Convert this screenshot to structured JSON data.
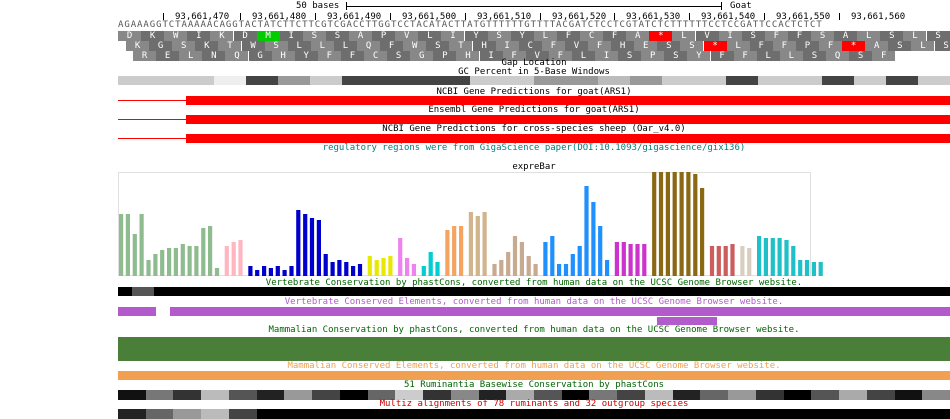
{
  "ruler": {
    "scale_label": "50 bases",
    "assembly_label": "Goat",
    "positions": [
      "93,661,470",
      "93,661,480",
      "93,661,490",
      "93,661,500",
      "93,661,510",
      "93,661,520",
      "93,661,530",
      "93,661,540",
      "93,661,550",
      "93,661,560"
    ]
  },
  "sequence": "AGAAAGGTCTAAAAACAGGTACTATCTTCTTCGTCGACCTTGGTCCTACATACTTATGTTTTTTGTTTTACGATCTCCTCGTATCTCTTTTTTCCTCCGATTCCACTCTCT",
  "frames": {
    "frame1": [
      "D",
      "K",
      "W",
      "I",
      "K",
      "D",
      "M",
      "I",
      "S",
      "S",
      "A",
      "P",
      "V",
      "L",
      "I",
      "Y",
      "S",
      "Y",
      "L",
      "F",
      "C",
      "F",
      "A",
      "*",
      "L",
      "V",
      "I",
      "S",
      "F",
      "F",
      "S",
      "A",
      "L",
      "S",
      "L",
      "S"
    ],
    "frame2": [
      "K",
      "G",
      "S",
      "K",
      "T",
      "W",
      "S",
      "L",
      "L",
      "L",
      "Q",
      "F",
      "W",
      "S",
      "T",
      "H",
      "I",
      "C",
      "F",
      "V",
      "F",
      "H",
      "E",
      "S",
      "S",
      "*",
      "L",
      "F",
      "F",
      "P",
      "F",
      "*",
      "A",
      "S",
      "L",
      "S"
    ],
    "frame3": [
      "R",
      "E",
      "L",
      "N",
      "Q",
      "G",
      "H",
      "Y",
      "F",
      "F",
      "C",
      "S",
      "G",
      "P",
      "H",
      "I",
      "F",
      "V",
      "F",
      "L",
      "I",
      "S",
      "P",
      "S",
      "Y",
      "F",
      "F",
      "L",
      "L",
      "S",
      "Q",
      "S",
      "F"
    ]
  },
  "tracks": {
    "gap_location": "Gap Location",
    "gc_percent": "GC Percent in 5-Base Windows",
    "ncbi_goat": "NCBI Gene Predictions for goat(ARS1)",
    "ensembl_goat": "Ensembl Gene Predictions for goat(ARS1)",
    "ncbi_sheep": "NCBI Gene Predictions for cross-species sheep (Oar_v4.0)",
    "regulatory": "regulatory regions were from GigaScience paper(DOI:10.1093/gigascience/gix136)",
    "exprebar": "expreBar",
    "vert_cons": "Vertebrate Conservation by phastCons, converted from human data on the UCSC Genome Browser website.",
    "vert_elements": "Vertebrate Conserved Elements, converted from human data on the UCSC Genome Browser website.",
    "mamm_cons": "Mammalian Conservation by phastCons, converted from human data on the UCSC Genome Browser website.",
    "mamm_elements": "Mammalian Conserved Elements, converted from human data on the UCSC Genome Browser website.",
    "rumin_cons": "51 Ruminantia Basewise Conservation by phastCons",
    "multiz": "Multiz alignments of 78 ruminants and 32 outgroup species"
  },
  "colors": {
    "gene": "#ff0000",
    "regulatory_text": "#008080",
    "vert_cons_text": "#006400",
    "vert_elem": "#b35bcc",
    "mamm_cons": "#4a7f3a",
    "mamm_elem": "#f0a050",
    "multiz_text": "#cc0000",
    "start_codon": "#00cc00",
    "stop_codon": "#ff0000"
  },
  "chart_data": {
    "type": "bar",
    "title": "expreBar",
    "groups": [
      {
        "color": "#8fbc8f",
        "values": [
          62,
          62,
          42,
          62,
          16,
          22,
          26,
          28,
          28,
          32,
          30,
          30,
          48,
          50,
          8
        ]
      },
      {
        "color": "#ffb6c1",
        "values": [
          30,
          34,
          36
        ]
      },
      {
        "color": "#0000cd",
        "values": [
          10,
          6,
          10,
          8,
          10,
          6,
          10,
          66,
          62,
          58,
          56,
          22,
          14,
          16,
          14,
          10,
          12
        ]
      },
      {
        "color": "#e8e800",
        "values": [
          20,
          16,
          18,
          20
        ]
      },
      {
        "color": "#ee82ee",
        "values": [
          38,
          18,
          12
        ]
      },
      {
        "color": "#00ced1",
        "values": [
          10,
          24,
          14
        ]
      },
      {
        "color": "#f4a460",
        "values": [
          46,
          50,
          50
        ]
      },
      {
        "color": "#d2b48c",
        "values": [
          64,
          60,
          64
        ]
      },
      {
        "color": "#c8aa90",
        "values": [
          12,
          16,
          24,
          40,
          34,
          20,
          12
        ]
      },
      {
        "color": "#1e90ff",
        "values": [
          34,
          40,
          12,
          12,
          22,
          30,
          90,
          74,
          50,
          16
        ]
      },
      {
        "color": "#cc33cc",
        "values": [
          34,
          34,
          32,
          32,
          32
        ]
      },
      {
        "color": "#8b6914",
        "values": [
          126,
          122,
          128,
          114,
          104,
          106,
          102,
          88
        ]
      },
      {
        "color": "#cd5c5c",
        "values": [
          30,
          30,
          30,
          32
        ]
      },
      {
        "color": "#d8cfc0",
        "values": [
          30,
          28
        ]
      },
      {
        "color": "#20c0c8",
        "values": [
          40,
          38,
          38,
          38,
          36,
          30,
          16,
          16,
          14,
          14
        ]
      }
    ]
  }
}
